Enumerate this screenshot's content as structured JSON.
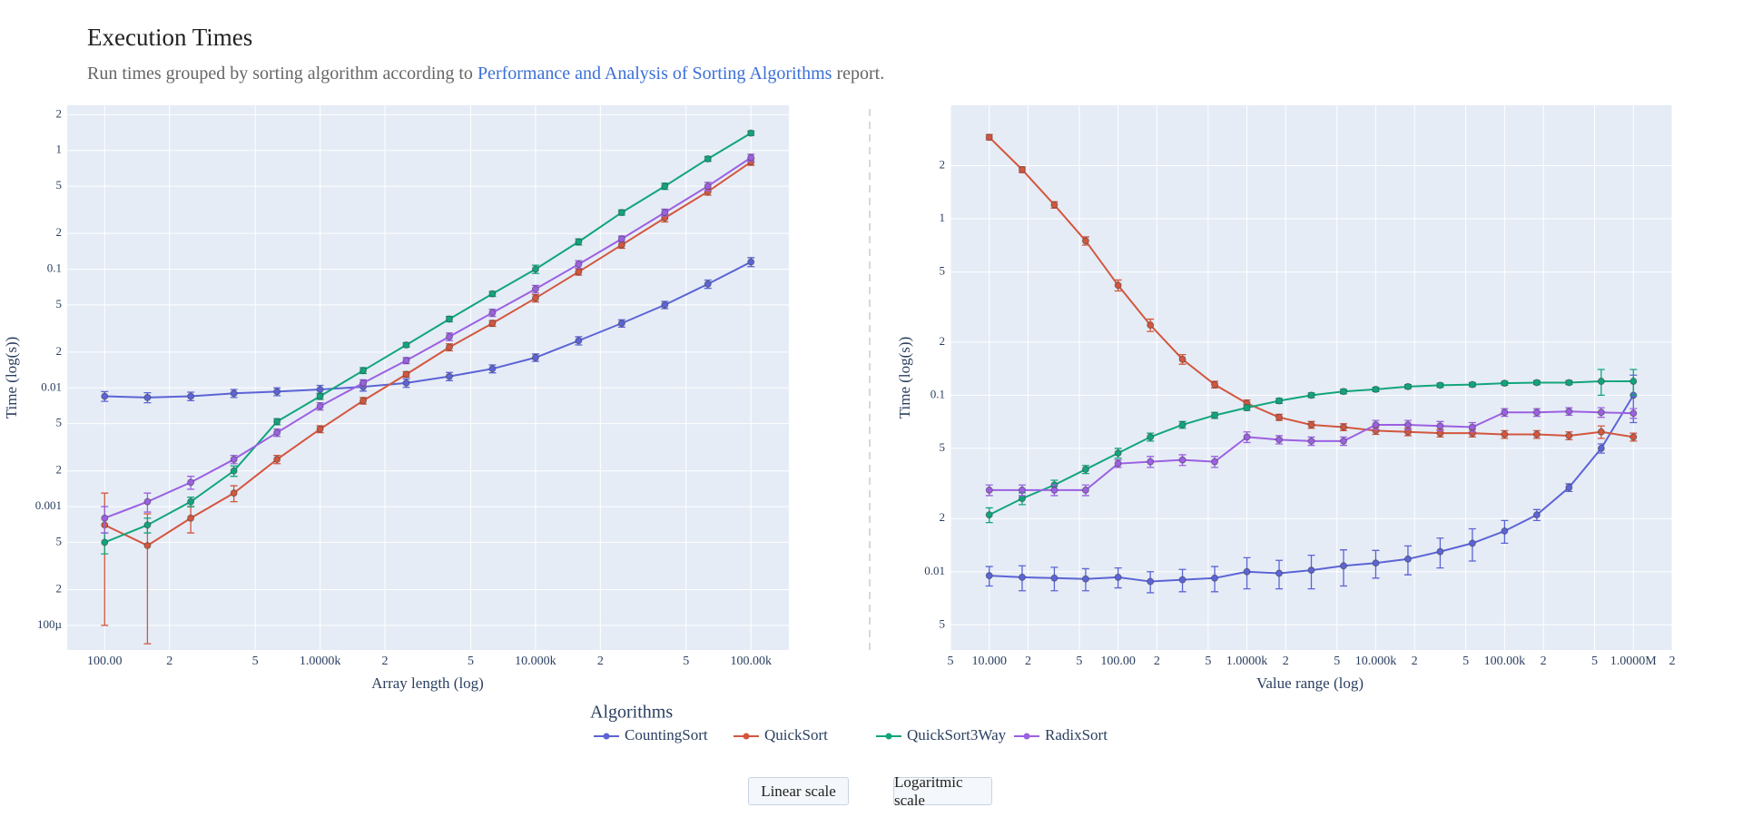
{
  "header": {
    "title": "Execution Times",
    "subtitle_before": "Run times grouped by sorting algorithm according to",
    "subtitle_link": "Performance and Analysis of Sorting Algorithms",
    "subtitle_after": "report."
  },
  "legend": {
    "title": "Algorithms"
  },
  "buttons": [
    "Linear scale",
    "Logaritmic scale"
  ],
  "chart_data": [
    {
      "type": "line",
      "log": true,
      "grid": true,
      "x_label": "Array length (log)",
      "y_label": "Time (log(s))",
      "xlim": [
        67,
        150000
      ],
      "ylim": [
        6.2e-05,
        2.4
      ],
      "xticks": [
        {
          "value": 100,
          "label": "100.00"
        },
        {
          "value": 200,
          "label": "2"
        },
        {
          "value": 500,
          "label": "5"
        },
        {
          "value": 1000,
          "label": "1.0000k"
        },
        {
          "value": 2000,
          "label": "2"
        },
        {
          "value": 5000,
          "label": "5"
        },
        {
          "value": 10000,
          "label": "10.000k"
        },
        {
          "value": 20000,
          "label": "2"
        },
        {
          "value": 50000,
          "label": "5"
        },
        {
          "value": 100000,
          "label": "100.00k"
        }
      ],
      "yticks": [
        {
          "value": 0.0001,
          "label": "100µ"
        },
        {
          "value": 0.0002,
          "label": "2"
        },
        {
          "value": 0.0005,
          "label": "5"
        },
        0.001,
        {
          "value": 0.002,
          "label": "2"
        },
        {
          "value": 0.005,
          "label": "5"
        },
        0.01,
        {
          "value": 0.02,
          "label": "2"
        },
        {
          "value": 0.05,
          "label": "5"
        },
        0.1,
        {
          "value": 0.2,
          "label": "2"
        },
        {
          "value": 0.5,
          "label": "5"
        },
        1,
        2
      ],
      "x": [
        100,
        158,
        251,
        398,
        631,
        1000,
        1585,
        2512,
        3981,
        6310,
        10000,
        15849,
        25119,
        39811,
        63096,
        100000
      ],
      "series": [
        {
          "name": "CountingSort",
          "color": "#5c64d6",
          "values": [
            0.0085,
            0.0083,
            0.0085,
            0.009,
            0.0093,
            0.0097,
            0.0102,
            0.011,
            0.0125,
            0.0145,
            0.018,
            0.025,
            0.035,
            0.05,
            0.075,
            0.115
          ],
          "errors": [
            0.0008,
            0.0008,
            0.0007,
            0.0007,
            0.0007,
            0.0008,
            0.0008,
            0.0009,
            0.001,
            0.0011,
            0.0013,
            0.002,
            0.0025,
            0.0035,
            0.006,
            0.01
          ]
        },
        {
          "name": "QuickSort",
          "color": "#d4563e",
          "values": [
            0.0007,
            0.00047,
            0.0008,
            0.0013,
            0.0025,
            0.0045,
            0.0078,
            0.013,
            0.022,
            0.035,
            0.057,
            0.095,
            0.16,
            0.27,
            0.45,
            0.8
          ],
          "errors": [
            0.0006,
            0.0004,
            0.0002,
            0.0002,
            0.0002,
            0.0003,
            0.0005,
            0.0007,
            0.0015,
            0.002,
            0.004,
            0.006,
            0.01,
            0.02,
            0.03,
            0.05
          ]
        },
        {
          "name": "QuickSort3Way",
          "color": "#12a57c",
          "values": [
            0.0005,
            0.0007,
            0.0011,
            0.002,
            0.0052,
            0.0085,
            0.014,
            0.023,
            0.038,
            0.062,
            0.1,
            0.17,
            0.3,
            0.5,
            0.85,
            1.4
          ],
          "errors": [
            0.0001,
            0.0001,
            0.0001,
            0.0002,
            0.0003,
            0.0005,
            0.0008,
            0.001,
            0.002,
            0.003,
            0.008,
            0.01,
            0.015,
            0.03,
            0.04,
            0.06
          ]
        },
        {
          "name": "RadixSort",
          "color": "#9c60e2",
          "values": [
            0.0008,
            0.0011,
            0.0016,
            0.0025,
            0.0042,
            0.007,
            0.011,
            0.017,
            0.027,
            0.043,
            0.068,
            0.11,
            0.18,
            0.3,
            0.5,
            0.87
          ],
          "errors": [
            0.0002,
            0.0002,
            0.0002,
            0.0002,
            0.0003,
            0.0005,
            0.0007,
            0.001,
            0.002,
            0.003,
            0.005,
            0.008,
            0.01,
            0.02,
            0.04,
            0.06
          ]
        }
      ]
    },
    {
      "type": "line",
      "log": true,
      "grid": true,
      "x_label": "Value range (log)",
      "y_label": "Time (log(s))",
      "xlim": [
        5,
        2000000
      ],
      "ylim": [
        0.0036,
        4.4
      ],
      "xticks": [
        5,
        {
          "value": 10,
          "label": "10.000"
        },
        {
          "value": 20,
          "label": "2"
        },
        {
          "value": 50,
          "label": "5"
        },
        {
          "value": 100,
          "label": "100.00"
        },
        {
          "value": 200,
          "label": "2"
        },
        {
          "value": 500,
          "label": "5"
        },
        {
          "value": 1000,
          "label": "1.0000k"
        },
        {
          "value": 2000,
          "label": "2"
        },
        {
          "value": 5000,
          "label": "5"
        },
        {
          "value": 10000,
          "label": "10.000k"
        },
        {
          "value": 20000,
          "label": "2"
        },
        {
          "value": 50000,
          "label": "5"
        },
        {
          "value": 100000,
          "label": "100.00k"
        },
        {
          "value": 200000,
          "label": "2"
        },
        {
          "value": 500000,
          "label": "5"
        },
        {
          "value": 1000000,
          "label": "1.0000M"
        },
        {
          "value": 2000000,
          "label": "2"
        }
      ],
      "yticks": [
        {
          "value": 0.005,
          "label": "5"
        },
        0.01,
        {
          "value": 0.02,
          "label": "2"
        },
        {
          "value": 0.05,
          "label": "5"
        },
        0.1,
        {
          "value": 0.2,
          "label": "2"
        },
        {
          "value": 0.5,
          "label": "5"
        },
        1,
        2
      ],
      "x": [
        10,
        18,
        32,
        56,
        100,
        178,
        316,
        562,
        1000,
        1778,
        3162,
        5623,
        10000,
        17783,
        31623,
        56234,
        100000,
        177828,
        316228,
        562341,
        1000000
      ],
      "series": [
        {
          "color": "#5c64d6",
          "values": [
            0.0095,
            0.0093,
            0.0092,
            0.0091,
            0.0093,
            0.0088,
            0.009,
            0.0092,
            0.01,
            0.0098,
            0.0102,
            0.0108,
            0.0112,
            0.0118,
            0.013,
            0.0145,
            0.017,
            0.021,
            0.03,
            0.05,
            0.1
          ],
          "errors": [
            0.0012,
            0.0015,
            0.0014,
            0.0013,
            0.0012,
            0.0012,
            0.0013,
            0.0015,
            0.002,
            0.0018,
            0.0022,
            0.0025,
            0.002,
            0.0022,
            0.0025,
            0.003,
            0.0025,
            0.0015,
            0.0015,
            0.003,
            0.03
          ]
        },
        {
          "color": "#d4563e",
          "values": [
            2.9,
            1.9,
            1.2,
            0.75,
            0.42,
            0.25,
            0.16,
            0.115,
            0.09,
            0.075,
            0.068,
            0.066,
            0.063,
            0.062,
            0.061,
            0.061,
            0.06,
            0.06,
            0.059,
            0.062,
            0.058
          ],
          "errors": [
            0.1,
            0.07,
            0.05,
            0.04,
            0.03,
            0.02,
            0.01,
            0.005,
            0.004,
            0.003,
            0.003,
            0.003,
            0.003,
            0.003,
            0.003,
            0.003,
            0.003,
            0.003,
            0.003,
            0.005,
            0.003
          ]
        },
        {
          "color": "#12a57c",
          "values": [
            0.021,
            0.026,
            0.031,
            0.038,
            0.047,
            0.058,
            0.068,
            0.077,
            0.085,
            0.093,
            0.1,
            0.105,
            0.108,
            0.112,
            0.114,
            0.115,
            0.117,
            0.118,
            0.118,
            0.12,
            0.12
          ],
          "errors": [
            0.002,
            0.002,
            0.002,
            0.002,
            0.003,
            0.003,
            0.003,
            0.003,
            0.003,
            0.003,
            0.003,
            0.003,
            0.003,
            0.003,
            0.003,
            0.003,
            0.003,
            0.003,
            0.003,
            0.02,
            0.02
          ]
        },
        {
          "color": "#9c60e2",
          "values": [
            0.029,
            0.029,
            0.029,
            0.029,
            0.041,
            0.042,
            0.043,
            0.042,
            0.058,
            0.056,
            0.055,
            0.055,
            0.068,
            0.068,
            0.067,
            0.066,
            0.08,
            0.08,
            0.081,
            0.08,
            0.079
          ],
          "errors": [
            0.002,
            0.002,
            0.002,
            0.002,
            0.002,
            0.003,
            0.003,
            0.003,
            0.004,
            0.003,
            0.003,
            0.003,
            0.004,
            0.004,
            0.004,
            0.004,
            0.004,
            0.004,
            0.004,
            0.005,
            0.005
          ]
        }
      ]
    }
  ]
}
